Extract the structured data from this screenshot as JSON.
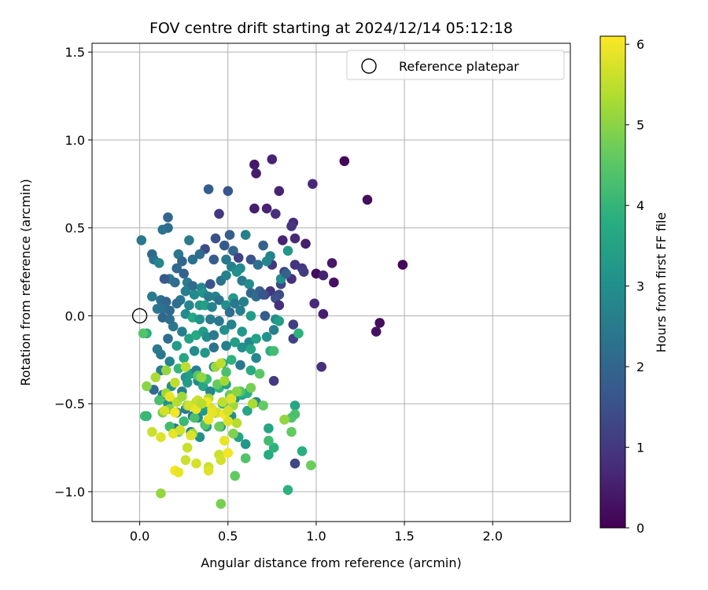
{
  "chart_data": {
    "type": "scatter",
    "title": "FOV centre drift starting at 2024/12/14 05:12:18",
    "xlabel": "Angular distance from reference (arcmin)",
    "ylabel": "Rotation from reference (arcmin)",
    "xlim": [
      -0.27,
      2.44
    ],
    "ylim": [
      -1.17,
      1.55
    ],
    "xticks": [
      0.0,
      0.5,
      1.0,
      1.5,
      2.0
    ],
    "xtick_labels": [
      "0.0",
      "0.5",
      "1.0",
      "1.5",
      "2.0"
    ],
    "yticks": [
      -1.0,
      -0.5,
      0.0,
      0.5,
      1.0,
      1.5
    ],
    "ytick_labels": [
      "−1.0",
      "−0.5",
      "0.0",
      "0.5",
      "1.0",
      "1.5"
    ],
    "grid": true,
    "legend": {
      "placement": "top-right",
      "entries": [
        "Reference platepar"
      ]
    },
    "reference_point": {
      "x": 0.0,
      "y": 0.0
    },
    "colorbar": {
      "label": "Hours from first FF file",
      "range": [
        0,
        6.1
      ],
      "ticks": [
        0,
        1,
        2,
        3,
        4,
        5,
        6
      ],
      "tick_labels": [
        "0",
        "1",
        "2",
        "3",
        "4",
        "5",
        "6"
      ],
      "colormap": "viridis"
    },
    "points": [
      [
        1.16,
        0.88,
        0.1
      ],
      [
        1.29,
        0.66,
        0.2
      ],
      [
        1.49,
        0.29,
        0.1
      ],
      [
        1.36,
        -0.04,
        0.2
      ],
      [
        1.34,
        -0.09,
        0.3
      ],
      [
        0.65,
        0.86,
        0.4
      ],
      [
        0.75,
        0.89,
        0.6
      ],
      [
        0.66,
        0.81,
        0.5
      ],
      [
        0.79,
        0.71,
        0.6
      ],
      [
        0.98,
        0.75,
        0.7
      ],
      [
        0.65,
        0.61,
        0.5
      ],
      [
        0.72,
        0.61,
        0.6
      ],
      [
        0.77,
        0.58,
        0.8
      ],
      [
        0.87,
        0.53,
        0.7
      ],
      [
        0.86,
        0.51,
        0.9
      ],
      [
        0.81,
        0.43,
        0.6
      ],
      [
        0.88,
        0.44,
        0.7
      ],
      [
        0.94,
        0.41,
        0.5
      ],
      [
        1.09,
        0.3,
        0.4
      ],
      [
        1.1,
        0.19,
        0.3
      ],
      [
        1.0,
        0.24,
        0.2
      ],
      [
        1.04,
        0.23,
        0.6
      ],
      [
        0.99,
        0.07,
        0.7
      ],
      [
        1.04,
        0.01,
        0.5
      ],
      [
        1.03,
        -0.29,
        0.8
      ],
      [
        0.88,
        0.29,
        0.9
      ],
      [
        0.92,
        0.27,
        1.0
      ],
      [
        0.93,
        0.25,
        1.1
      ],
      [
        0.86,
        0.21,
        0.8
      ],
      [
        0.82,
        0.25,
        1.2
      ],
      [
        0.75,
        0.29,
        1.0
      ],
      [
        0.8,
        0.18,
        1.3
      ],
      [
        0.74,
        0.14,
        0.9
      ],
      [
        0.79,
        0.12,
        1.4
      ],
      [
        0.77,
        0.1,
        1.5
      ],
      [
        0.79,
        0.06,
        0.8
      ],
      [
        0.87,
        -0.05,
        1.1
      ],
      [
        0.87,
        -0.13,
        1.2
      ],
      [
        0.76,
        -0.37,
        1.0
      ],
      [
        0.88,
        -0.84,
        1.3
      ],
      [
        0.39,
        0.72,
        1.8
      ],
      [
        0.5,
        0.71,
        1.6
      ],
      [
        0.45,
        0.58,
        1.0
      ],
      [
        0.16,
        0.56,
        2.0
      ],
      [
        0.16,
        0.5,
        2.2
      ],
      [
        0.13,
        0.49,
        2.3
      ],
      [
        0.01,
        0.43,
        2.4
      ],
      [
        0.28,
        0.43,
        2.5
      ],
      [
        0.43,
        0.44,
        1.5
      ],
      [
        0.51,
        0.46,
        1.8
      ],
      [
        0.6,
        0.46,
        2.6
      ],
      [
        0.37,
        0.38,
        1.4
      ],
      [
        0.34,
        0.35,
        2.2
      ],
      [
        0.22,
        0.35,
        2.4
      ],
      [
        0.48,
        0.4,
        1.7
      ],
      [
        0.53,
        0.37,
        2.0
      ],
      [
        0.56,
        0.33,
        1.2
      ],
      [
        0.7,
        0.4,
        1.9
      ],
      [
        0.74,
        0.34,
        2.7
      ],
      [
        0.63,
        0.32,
        1.6
      ],
      [
        0.07,
        0.35,
        2.1
      ],
      [
        0.08,
        0.32,
        2.3
      ],
      [
        0.11,
        0.3,
        2.8
      ],
      [
        0.24,
        0.31,
        2.0
      ],
      [
        0.3,
        0.32,
        2.2
      ],
      [
        0.42,
        0.32,
        1.8
      ],
      [
        0.49,
        0.32,
        2.4
      ],
      [
        0.52,
        0.28,
        2.6
      ],
      [
        0.57,
        0.27,
        2.9
      ],
      [
        0.67,
        0.29,
        2.2
      ],
      [
        0.72,
        0.31,
        2.8
      ],
      [
        0.84,
        0.37,
        3.2
      ],
      [
        0.21,
        0.27,
        2.1
      ],
      [
        0.25,
        0.24,
        1.9
      ],
      [
        0.17,
        0.21,
        2.4
      ],
      [
        0.14,
        0.21,
        1.7
      ],
      [
        0.2,
        0.19,
        2.2
      ],
      [
        0.27,
        0.19,
        2.5
      ],
      [
        0.3,
        0.17,
        2.1
      ],
      [
        0.35,
        0.16,
        2.8
      ],
      [
        0.4,
        0.18,
        1.5
      ],
      [
        0.46,
        0.2,
        2.3
      ],
      [
        0.49,
        0.23,
        2.7
      ],
      [
        0.55,
        0.25,
        3.0
      ],
      [
        0.58,
        0.2,
        2.5
      ],
      [
        0.62,
        0.18,
        2.9
      ],
      [
        0.68,
        0.14,
        1.8
      ],
      [
        0.71,
        0.12,
        1.2
      ],
      [
        0.8,
        0.21,
        3.0
      ],
      [
        0.83,
        0.24,
        1.9
      ],
      [
        0.07,
        0.11,
        2.5
      ],
      [
        0.12,
        0.09,
        2.2
      ],
      [
        0.15,
        0.08,
        2.0
      ],
      [
        0.23,
        0.09,
        2.4
      ],
      [
        0.26,
        0.14,
        2.6
      ],
      [
        0.31,
        0.12,
        2.9
      ],
      [
        0.36,
        0.13,
        3.1
      ],
      [
        0.39,
        0.11,
        2.5
      ],
      [
        0.43,
        0.11,
        2.7
      ],
      [
        0.45,
        0.09,
        2.3
      ],
      [
        0.53,
        0.1,
        3.3
      ],
      [
        0.59,
        0.08,
        2.6
      ],
      [
        0.63,
        0.13,
        2.0
      ],
      [
        0.66,
        0.11,
        2.1
      ],
      [
        0.7,
        0.12,
        1.6
      ],
      [
        0.1,
        0.04,
        2.4
      ],
      [
        0.13,
        0.04,
        2.3
      ],
      [
        0.17,
        0.03,
        2.1
      ],
      [
        0.21,
        0.07,
        2.2
      ],
      [
        0.28,
        0.06,
        2.8
      ],
      [
        0.34,
        0.06,
        3.2
      ],
      [
        0.37,
        0.06,
        3.4
      ],
      [
        0.41,
        0.05,
        2.7
      ],
      [
        0.49,
        0.06,
        3.0
      ],
      [
        0.54,
        0.07,
        2.4
      ],
      [
        0.57,
        0.03,
        2.6
      ],
      [
        0.13,
        -0.01,
        2.0
      ],
      [
        0.17,
        -0.02,
        2.2
      ],
      [
        0.26,
        0.01,
        2.9
      ],
      [
        0.3,
        -0.01,
        3.6
      ],
      [
        0.34,
        -0.02,
        3.1
      ],
      [
        0.4,
        -0.02,
        2.5
      ],
      [
        0.45,
        -0.03,
        2.4
      ],
      [
        0.51,
        0.02,
        2.2
      ],
      [
        0.63,
        0.0,
        3.3
      ],
      [
        0.71,
        0.0,
        1.8
      ],
      [
        0.77,
        -0.02,
        3.0
      ],
      [
        0.79,
        -0.03,
        3.4
      ],
      [
        0.04,
        -0.1,
        3.8
      ],
      [
        0.1,
        -0.19,
        2.5
      ],
      [
        0.16,
        -0.13,
        2.2
      ],
      [
        0.19,
        -0.06,
        2.4
      ],
      [
        0.24,
        -0.09,
        2.6
      ],
      [
        0.28,
        -0.13,
        3.5
      ],
      [
        0.32,
        -0.11,
        3.7
      ],
      [
        0.36,
        -0.09,
        3.3
      ],
      [
        0.38,
        -0.12,
        2.9
      ],
      [
        0.42,
        -0.11,
        2.5
      ],
      [
        0.48,
        -0.08,
        3.0
      ],
      [
        0.52,
        -0.05,
        2.7
      ],
      [
        0.58,
        -0.09,
        3.2
      ],
      [
        0.62,
        -0.15,
        2.8
      ],
      [
        0.66,
        -0.13,
        3.5
      ],
      [
        0.72,
        -0.12,
        3.1
      ],
      [
        0.76,
        -0.08,
        2.6
      ],
      [
        0.9,
        -0.1,
        3.9
      ],
      [
        0.12,
        -0.22,
        2.4
      ],
      [
        0.17,
        -0.26,
        2.7
      ],
      [
        0.21,
        -0.17,
        3.3
      ],
      [
        0.25,
        -0.24,
        3.6
      ],
      [
        0.31,
        -0.2,
        2.9
      ],
      [
        0.37,
        -0.21,
        3.2
      ],
      [
        0.42,
        -0.18,
        2.3
      ],
      [
        0.49,
        -0.17,
        2.6
      ],
      [
        0.54,
        -0.15,
        3.4
      ],
      [
        0.58,
        -0.18,
        3.0
      ],
      [
        0.63,
        -0.19,
        3.6
      ],
      [
        0.66,
        -0.24,
        2.8
      ],
      [
        0.74,
        -0.2,
        3.8
      ],
      [
        0.12,
        -0.31,
        2.5
      ],
      [
        0.22,
        -0.3,
        4.0
      ],
      [
        0.26,
        -0.35,
        3.1
      ],
      [
        0.29,
        -0.33,
        3.4
      ],
      [
        0.32,
        -0.31,
        2.6
      ],
      [
        0.42,
        -0.29,
        2.8
      ],
      [
        0.47,
        -0.27,
        3.5
      ],
      [
        0.52,
        -0.25,
        3.9
      ],
      [
        0.57,
        -0.28,
        2.4
      ],
      [
        0.63,
        -0.31,
        3.7
      ],
      [
        0.08,
        -0.42,
        2.1
      ],
      [
        0.13,
        -0.45,
        2.4
      ],
      [
        0.18,
        -0.4,
        3.0
      ],
      [
        0.24,
        -0.43,
        2.6
      ],
      [
        0.27,
        -0.38,
        3.3
      ],
      [
        0.33,
        -0.37,
        2.9
      ],
      [
        0.36,
        -0.4,
        3.6
      ],
      [
        0.4,
        -0.43,
        2.8
      ],
      [
        0.45,
        -0.41,
        3.9
      ],
      [
        0.49,
        -0.39,
        3.4
      ],
      [
        0.54,
        -0.47,
        3.1
      ],
      [
        0.58,
        -0.45,
        3.6
      ],
      [
        0.61,
        -0.44,
        3.8
      ],
      [
        0.16,
        -0.5,
        3.1
      ],
      [
        0.21,
        -0.55,
        2.7
      ],
      [
        0.26,
        -0.53,
        2.5
      ],
      [
        0.3,
        -0.57,
        2.3
      ],
      [
        0.33,
        -0.58,
        2.9
      ],
      [
        0.36,
        -0.54,
        3.2
      ],
      [
        0.39,
        -0.52,
        3.4
      ],
      [
        0.43,
        -0.55,
        2.6
      ],
      [
        0.47,
        -0.5,
        3.7
      ],
      [
        0.52,
        -0.57,
        3.0
      ],
      [
        0.61,
        -0.54,
        3.6
      ],
      [
        0.66,
        -0.49,
        2.8
      ],
      [
        0.2,
        -0.64,
        2.4
      ],
      [
        0.29,
        -0.66,
        2.8
      ],
      [
        0.34,
        -0.69,
        3.0
      ],
      [
        0.38,
        -0.63,
        3.3
      ],
      [
        0.46,
        -0.63,
        3.4
      ],
      [
        0.56,
        -0.69,
        3.5
      ],
      [
        0.6,
        -0.73,
        3.2
      ],
      [
        0.73,
        -0.64,
        3.6
      ],
      [
        0.73,
        -0.79,
        3.7
      ],
      [
        0.76,
        -0.75,
        3.9
      ],
      [
        0.88,
        -0.51,
        3.6
      ],
      [
        0.92,
        -0.77,
        3.8
      ],
      [
        0.84,
        -0.99,
        3.9
      ],
      [
        0.04,
        -0.57,
        3.9
      ],
      [
        0.02,
        -0.1,
        4.4
      ],
      [
        0.11,
        -0.48,
        4.3
      ],
      [
        0.26,
        -0.29,
        4.2
      ],
      [
        0.33,
        -0.34,
        4.5
      ],
      [
        0.38,
        -0.36,
        4.1
      ],
      [
        0.44,
        -0.39,
        4.6
      ],
      [
        0.49,
        -0.32,
        4.3
      ],
      [
        0.51,
        -0.45,
        4.7
      ],
      [
        0.57,
        -0.43,
        4.4
      ],
      [
        0.63,
        -0.41,
        4.8
      ],
      [
        0.68,
        -0.33,
        4.5
      ],
      [
        0.7,
        -0.51,
        4.6
      ],
      [
        0.76,
        -0.2,
        4.2
      ],
      [
        0.86,
        -0.58,
        4.4
      ],
      [
        0.86,
        -0.66,
        4.6
      ],
      [
        0.97,
        -0.85,
        4.7
      ],
      [
        0.88,
        -0.56,
        4.3
      ],
      [
        0.17,
        -0.63,
        4.2
      ],
      [
        0.22,
        -0.66,
        4.5
      ],
      [
        0.25,
        -0.6,
        4.1
      ],
      [
        0.31,
        -0.58,
        4.3
      ],
      [
        0.37,
        -0.62,
        4.4
      ],
      [
        0.45,
        -0.63,
        4.7
      ],
      [
        0.53,
        -0.67,
        4.9
      ],
      [
        0.6,
        -0.81,
        4.4
      ],
      [
        0.54,
        -0.91,
        4.6
      ],
      [
        0.46,
        -1.07,
        4.8
      ],
      [
        0.73,
        -0.71,
        4.2
      ],
      [
        0.12,
        -1.01,
        5.1
      ],
      [
        0.13,
        -0.55,
        4.8
      ],
      [
        0.15,
        -0.44,
        5.2
      ],
      [
        0.17,
        -0.53,
        4.9
      ],
      [
        0.21,
        -0.49,
        5.4
      ],
      [
        0.04,
        -0.4,
        5.0
      ],
      [
        0.09,
        -0.35,
        5.3
      ],
      [
        0.15,
        -0.31,
        5.1
      ],
      [
        0.2,
        -0.38,
        5.5
      ],
      [
        0.24,
        -0.46,
        5.2
      ],
      [
        0.27,
        -0.51,
        5.0
      ],
      [
        0.32,
        -0.49,
        5.4
      ],
      [
        0.35,
        -0.35,
        5.1
      ],
      [
        0.39,
        -0.47,
        5.3
      ],
      [
        0.43,
        -0.29,
        5.2
      ],
      [
        0.47,
        -0.49,
        5.5
      ],
      [
        0.53,
        -0.51,
        5.2
      ],
      [
        0.55,
        -0.61,
        5.4
      ],
      [
        0.64,
        -0.5,
        5.3
      ],
      [
        0.82,
        -0.59,
        5.1
      ],
      [
        0.3,
        -0.67,
        5.2
      ],
      [
        0.27,
        -0.75,
        5.6
      ],
      [
        0.07,
        -0.66,
        5.6
      ],
      [
        0.12,
        -0.69,
        5.8
      ],
      [
        0.14,
        -0.54,
        5.7
      ],
      [
        0.17,
        -0.46,
        5.9
      ],
      [
        0.2,
        -0.55,
        6.0
      ],
      [
        0.19,
        -0.67,
        5.9
      ],
      [
        0.23,
        -0.65,
        5.7
      ],
      [
        0.26,
        -0.82,
        5.6
      ],
      [
        0.29,
        -0.68,
        5.8
      ],
      [
        0.28,
        -0.51,
        5.7
      ],
      [
        0.32,
        -0.53,
        5.9
      ],
      [
        0.38,
        -0.49,
        6.0
      ],
      [
        0.41,
        -0.53,
        5.8
      ],
      [
        0.44,
        -0.55,
        5.7
      ],
      [
        0.48,
        -0.56,
        6.0
      ],
      [
        0.5,
        -0.6,
        5.8
      ],
      [
        0.45,
        -0.79,
        5.6
      ],
      [
        0.48,
        -0.71,
        5.9
      ],
      [
        0.46,
        -0.82,
        5.7
      ],
      [
        0.39,
        -0.86,
        5.6
      ],
      [
        0.32,
        -0.84,
        5.7
      ],
      [
        0.2,
        -0.88,
        6.0
      ],
      [
        0.22,
        -0.89,
        5.9
      ],
      [
        0.39,
        -0.88,
        5.8
      ],
      [
        0.5,
        -0.78,
        6.0
      ],
      [
        0.41,
        -0.55,
        5.9
      ],
      [
        0.46,
        -0.27,
        5.5
      ],
      [
        0.33,
        -0.48,
        5.6
      ],
      [
        0.52,
        -0.47,
        5.8
      ],
      [
        0.48,
        -0.37,
        5.2
      ],
      [
        0.35,
        -0.5,
        5.4
      ],
      [
        0.5,
        -0.54,
        5.7
      ],
      [
        0.03,
        -0.57,
        4.1
      ],
      [
        0.26,
        -0.29,
        5.5
      ],
      [
        0.39,
        -0.59,
        5.9
      ],
      [
        0.55,
        -0.43,
        5.0
      ]
    ]
  }
}
